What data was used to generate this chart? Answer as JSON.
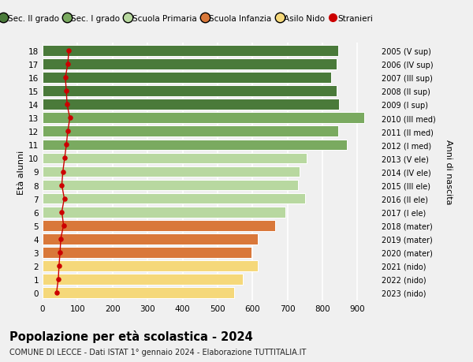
{
  "ages": [
    18,
    17,
    16,
    15,
    14,
    13,
    12,
    11,
    10,
    9,
    8,
    7,
    6,
    5,
    4,
    3,
    2,
    1,
    0
  ],
  "labels_right": [
    "2005 (V sup)",
    "2006 (IV sup)",
    "2007 (III sup)",
    "2008 (II sup)",
    "2009 (I sup)",
    "2010 (III med)",
    "2011 (II med)",
    "2012 (I med)",
    "2013 (V ele)",
    "2014 (IV ele)",
    "2015 (III ele)",
    "2016 (II ele)",
    "2017 (I ele)",
    "2018 (mater)",
    "2019 (mater)",
    "2020 (mater)",
    "2021 (nido)",
    "2022 (nido)",
    "2023 (nido)"
  ],
  "bar_values": [
    845,
    840,
    825,
    840,
    848,
    920,
    845,
    870,
    755,
    735,
    730,
    750,
    695,
    665,
    615,
    598,
    615,
    572,
    548
  ],
  "bar_colors": [
    "#4a7a3a",
    "#4a7a3a",
    "#4a7a3a",
    "#4a7a3a",
    "#4a7a3a",
    "#7aaa60",
    "#7aaa60",
    "#7aaa60",
    "#b8d8a0",
    "#b8d8a0",
    "#b8d8a0",
    "#b8d8a0",
    "#b8d8a0",
    "#d9783a",
    "#d9783a",
    "#d9783a",
    "#f5d87a",
    "#f5d87a",
    "#f5d87a"
  ],
  "stranieri_values": [
    75,
    72,
    65,
    68,
    70,
    78,
    72,
    68,
    63,
    58,
    55,
    62,
    55,
    60,
    52,
    50,
    47,
    45,
    40
  ],
  "ylabel_left": "Età alunni",
  "ylabel_right": "Anni di nascita",
  "title": "Popolazione per età scolastica - 2024",
  "subtitle": "COMUNE DI LECCE - Dati ISTAT 1° gennaio 2024 - Elaborazione TUTTITALIA.IT",
  "xlim": [
    0,
    960
  ],
  "xticks": [
    0,
    100,
    200,
    300,
    400,
    500,
    600,
    700,
    800,
    900
  ],
  "legend_labels": [
    "Sec. II grado",
    "Sec. I grado",
    "Scuola Primaria",
    "Scuola Infanzia",
    "Asilo Nido",
    "Stranieri"
  ],
  "legend_colors": [
    "#4a7a3a",
    "#7aaa60",
    "#b8d8a0",
    "#d9783a",
    "#f5d87a",
    "#cc0000"
  ],
  "background_color": "#f0f0f0",
  "grid_color": "#ffffff",
  "bar_edge_color": "#ffffff"
}
